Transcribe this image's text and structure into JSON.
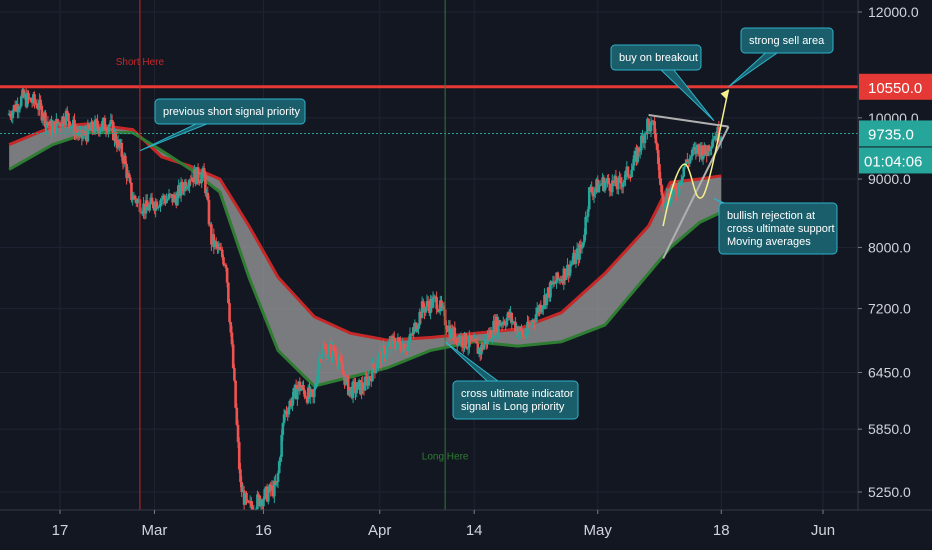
{
  "chart_data": {
    "type": "candlestick",
    "title": "",
    "xlabel": "",
    "ylabel": "",
    "y_scale": "log",
    "ylim": [
      5100,
      12500
    ],
    "x_range": [
      "2020-02-10",
      "2020-06-03"
    ],
    "y_ticks": [
      {
        "value": 12000,
        "label": "12000.0"
      },
      {
        "value": 10000,
        "label": "10000.0"
      },
      {
        "value": 9000,
        "label": "9000.0"
      },
      {
        "value": 8000,
        "label": "8000.0"
      },
      {
        "value": 7200,
        "label": "7200.0"
      },
      {
        "value": 6450,
        "label": "6450.0"
      },
      {
        "value": 5850,
        "label": "5850.0"
      },
      {
        "value": 5250,
        "label": "5250.0"
      }
    ],
    "x_ticks": [
      {
        "date": "2020-02-17",
        "label": "17"
      },
      {
        "date": "2020-03-01",
        "label": "Mar"
      },
      {
        "date": "2020-03-16",
        "label": "16"
      },
      {
        "date": "2020-04-01",
        "label": "Apr"
      },
      {
        "date": "2020-04-14",
        "label": "14"
      },
      {
        "date": "2020-05-01",
        "label": "May"
      },
      {
        "date": "2020-05-18",
        "label": "18"
      },
      {
        "date": "2020-06-01",
        "label": "Jun"
      }
    ],
    "price_path": [
      {
        "date": "2020-02-10",
        "price": 10050
      },
      {
        "date": "2020-02-12",
        "price": 10350
      },
      {
        "date": "2020-02-14",
        "price": 10250
      },
      {
        "date": "2020-02-16",
        "price": 9800
      },
      {
        "date": "2020-02-18",
        "price": 10050
      },
      {
        "date": "2020-02-20",
        "price": 9650
      },
      {
        "date": "2020-02-22",
        "price": 9850
      },
      {
        "date": "2020-02-24",
        "price": 9900
      },
      {
        "date": "2020-02-26",
        "price": 9300
      },
      {
        "date": "2020-02-27",
        "price": 8750
      },
      {
        "date": "2020-02-29",
        "price": 8550
      },
      {
        "date": "2020-03-02",
        "price": 8700
      },
      {
        "date": "2020-03-04",
        "price": 8700
      },
      {
        "date": "2020-03-06",
        "price": 9050
      },
      {
        "date": "2020-03-08",
        "price": 9050
      },
      {
        "date": "2020-03-09",
        "price": 8100
      },
      {
        "date": "2020-03-11",
        "price": 7800
      },
      {
        "date": "2020-03-12",
        "price": 6500
      },
      {
        "date": "2020-03-13",
        "price": 5300
      },
      {
        "date": "2020-03-14",
        "price": 5100
      },
      {
        "date": "2020-03-16",
        "price": 5200
      },
      {
        "date": "2020-03-18",
        "price": 5300
      },
      {
        "date": "2020-03-19",
        "price": 6000
      },
      {
        "date": "2020-03-21",
        "price": 6300
      },
      {
        "date": "2020-03-23",
        "price": 6150
      },
      {
        "date": "2020-03-24",
        "price": 6700
      },
      {
        "date": "2020-03-26",
        "price": 6700
      },
      {
        "date": "2020-03-28",
        "price": 6250
      },
      {
        "date": "2020-03-30",
        "price": 6300
      },
      {
        "date": "2020-04-01",
        "price": 6600
      },
      {
        "date": "2020-04-03",
        "price": 6800
      },
      {
        "date": "2020-04-05",
        "price": 6750
      },
      {
        "date": "2020-04-07",
        "price": 7200
      },
      {
        "date": "2020-04-09",
        "price": 7300
      },
      {
        "date": "2020-04-11",
        "price": 6900
      },
      {
        "date": "2020-04-13",
        "price": 6800
      },
      {
        "date": "2020-04-15",
        "price": 6700
      },
      {
        "date": "2020-04-17",
        "price": 7000
      },
      {
        "date": "2020-04-19",
        "price": 7100
      },
      {
        "date": "2020-04-21",
        "price": 6850
      },
      {
        "date": "2020-04-23",
        "price": 7200
      },
      {
        "date": "2020-04-25",
        "price": 7500
      },
      {
        "date": "2020-04-27",
        "price": 7700
      },
      {
        "date": "2020-04-29",
        "price": 8000
      },
      {
        "date": "2020-04-30",
        "price": 8800
      },
      {
        "date": "2020-05-02",
        "price": 8950
      },
      {
        "date": "2020-05-04",
        "price": 8900
      },
      {
        "date": "2020-05-06",
        "price": 9200
      },
      {
        "date": "2020-05-08",
        "price": 9900
      },
      {
        "date": "2020-05-09",
        "price": 9800
      },
      {
        "date": "2020-05-10",
        "price": 8700
      },
      {
        "date": "2020-05-12",
        "price": 8800
      },
      {
        "date": "2020-05-13",
        "price": 9200
      },
      {
        "date": "2020-05-15",
        "price": 9500
      },
      {
        "date": "2020-05-16",
        "price": 9400
      },
      {
        "date": "2020-05-17",
        "price": 9700
      },
      {
        "date": "2020-05-18",
        "price": 9735
      }
    ],
    "moving_averages": {
      "upper": [
        {
          "date": "2020-02-10",
          "price": 9550
        },
        {
          "date": "2020-02-16",
          "price": 9850
        },
        {
          "date": "2020-02-21",
          "price": 9900
        },
        {
          "date": "2020-02-27",
          "price": 9800
        },
        {
          "date": "2020-03-02",
          "price": 9350
        },
        {
          "date": "2020-03-06",
          "price": 9200
        },
        {
          "date": "2020-03-10",
          "price": 9000
        },
        {
          "date": "2020-03-14",
          "price": 8300
        },
        {
          "date": "2020-03-18",
          "price": 7600
        },
        {
          "date": "2020-03-23",
          "price": 7100
        },
        {
          "date": "2020-03-28",
          "price": 6900
        },
        {
          "date": "2020-04-02",
          "price": 6820
        },
        {
          "date": "2020-04-08",
          "price": 6850
        },
        {
          "date": "2020-04-14",
          "price": 6900
        },
        {
          "date": "2020-04-20",
          "price": 6950
        },
        {
          "date": "2020-04-26",
          "price": 7150
        },
        {
          "date": "2020-05-02",
          "price": 7650
        },
        {
          "date": "2020-05-08",
          "price": 8300
        },
        {
          "date": "2020-05-11",
          "price": 8950
        },
        {
          "date": "2020-05-15",
          "price": 9000
        },
        {
          "date": "2020-05-18",
          "price": 9050
        }
      ],
      "lower": [
        {
          "date": "2020-02-10",
          "price": 9150
        },
        {
          "date": "2020-02-16",
          "price": 9550
        },
        {
          "date": "2020-02-21",
          "price": 9750
        },
        {
          "date": "2020-02-27",
          "price": 9750
        },
        {
          "date": "2020-03-02",
          "price": 9450
        },
        {
          "date": "2020-03-06",
          "price": 9150
        },
        {
          "date": "2020-03-10",
          "price": 8800
        },
        {
          "date": "2020-03-14",
          "price": 7600
        },
        {
          "date": "2020-03-18",
          "price": 6700
        },
        {
          "date": "2020-03-23",
          "price": 6300
        },
        {
          "date": "2020-03-28",
          "price": 6400
        },
        {
          "date": "2020-04-02",
          "price": 6500
        },
        {
          "date": "2020-04-08",
          "price": 6700
        },
        {
          "date": "2020-04-14",
          "price": 6800
        },
        {
          "date": "2020-04-20",
          "price": 6750
        },
        {
          "date": "2020-04-26",
          "price": 6800
        },
        {
          "date": "2020-05-02",
          "price": 7000
        },
        {
          "date": "2020-05-08",
          "price": 7650
        },
        {
          "date": "2020-05-11",
          "price": 8000
        },
        {
          "date": "2020-05-15",
          "price": 8350
        },
        {
          "date": "2020-05-18",
          "price": 8500
        }
      ]
    },
    "horizontal_levels": [
      {
        "price": 10550,
        "label": "10550.0",
        "color": "#e53935"
      },
      {
        "price": 9735,
        "label": "9735.0",
        "color": "#26a69a"
      }
    ],
    "countdown_label": "01:04:06",
    "vertical_markers": [
      {
        "date": "2020-02-28",
        "label": "Short Here",
        "label_price": 10950,
        "color": "#c62828"
      },
      {
        "date": "2020-04-10",
        "label": "Long Here",
        "label_price": 5550,
        "color": "#2e7d32"
      }
    ],
    "annotations": [
      {
        "text": "previous short signal priority",
        "pointer_date": "2020-02-28",
        "pointer_price": 9450
      },
      {
        "text": "cross ultimate indicator signal is Long priority",
        "pointer_date": "2020-04-10",
        "pointer_price": 6800
      },
      {
        "text": "buy on breakout",
        "pointer_date": "2020-05-17",
        "pointer_price": 9950
      },
      {
        "text": "strong sell area",
        "pointer_date": "2020-05-19",
        "pointer_price": 10550
      },
      {
        "text": "bullish rejection at cross ultimate support Moving averages",
        "pointer_date": "2020-05-17",
        "pointer_price": 8700
      }
    ],
    "drawings": {
      "triangle": {
        "top": [
          {
            "date": "2020-05-08",
            "price": 10050
          },
          {
            "date": "2020-05-19",
            "price": 9850
          }
        ],
        "bottom": [
          {
            "date": "2020-05-10",
            "price": 7850
          },
          {
            "date": "2020-05-19",
            "price": 9850
          }
        ]
      },
      "projection_arrow": {
        "from_date": "2020-05-10",
        "from_price": 8300,
        "to_date": "2020-05-19",
        "to_price": 10500
      }
    },
    "grid": true,
    "colors": {
      "background": "#131722",
      "up": "#26a69a",
      "down": "#ef5350",
      "ma_upper": "#c62828",
      "ma_lower": "#2e7d32",
      "band_fill": "#9e9e9e",
      "callout": "#1b5e6b"
    }
  }
}
